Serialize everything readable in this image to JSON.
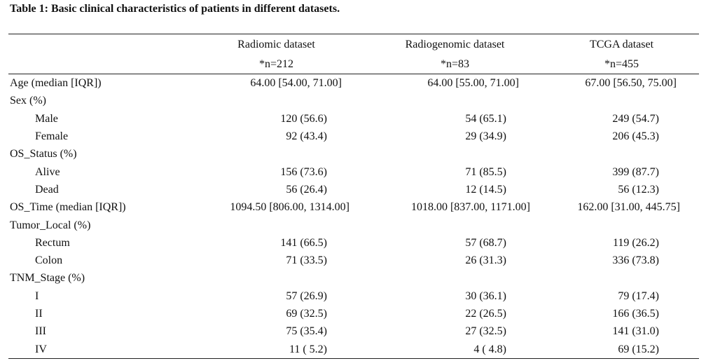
{
  "caption": "Table 1: Basic clinical characteristics of patients in different datasets.",
  "columns": [
    {
      "name": "Radiomic dataset",
      "n": "*n=212"
    },
    {
      "name": "Radiogenomic dataset",
      "n": "*n=83"
    },
    {
      "name": "TCGA dataset",
      "n": "*n=455"
    }
  ],
  "rows": [
    {
      "label": "Age (median [IQR])",
      "values": [
        "64.00 [54.00, 71.00]",
        "64.00 [55.00, 71.00]",
        "67.00 [56.50, 75.00]"
      ]
    },
    {
      "label": "Sex (%)",
      "values": [
        "",
        "",
        ""
      ]
    },
    {
      "label": "Male",
      "values": [
        "120 (56.6)",
        "54 (65.1)",
        "249 (54.7)"
      ]
    },
    {
      "label": "Female",
      "values": [
        "92 (43.4)",
        "29 (34.9)",
        "206 (45.3)"
      ]
    },
    {
      "label": "OS_Status (%)",
      "values": [
        "",
        "",
        ""
      ]
    },
    {
      "label": "Alive",
      "values": [
        "156 (73.6)",
        "71 (85.5)",
        "399 (87.7)"
      ]
    },
    {
      "label": "Dead",
      "values": [
        "56 (26.4)",
        "12 (14.5)",
        "56 (12.3)"
      ]
    },
    {
      "label": "OS_Time (median [IQR])",
      "values": [
        "1094.50 [806.00, 1314.00]",
        "1018.00 [837.00, 1171.00]",
        "162.00 [31.00, 445.75]"
      ]
    },
    {
      "label": "Tumor_Local (%)",
      "values": [
        "",
        "",
        ""
      ]
    },
    {
      "label": "Rectum",
      "values": [
        "141 (66.5)",
        "57 (68.7)",
        "119 (26.2)"
      ]
    },
    {
      "label": "Colon",
      "values": [
        "71 (33.5)",
        "26 (31.3)",
        "336 (73.8)"
      ]
    },
    {
      "label": "TNM_Stage (%)",
      "values": [
        "",
        "",
        ""
      ]
    },
    {
      "label": "I",
      "values": [
        "57 (26.9)",
        "30 (36.1)",
        "79 (17.4)"
      ]
    },
    {
      "label": "II",
      "values": [
        "69 (32.5)",
        "22 (26.5)",
        "166 (36.5)"
      ]
    },
    {
      "label": "III",
      "values": [
        "75 (35.4)",
        "27 (32.5)",
        "141 (31.0)"
      ]
    },
    {
      "label": "IV",
      "values": [
        "11 ( 5.2)",
        "4 ( 4.8)",
        "69 (15.2)"
      ]
    }
  ]
}
